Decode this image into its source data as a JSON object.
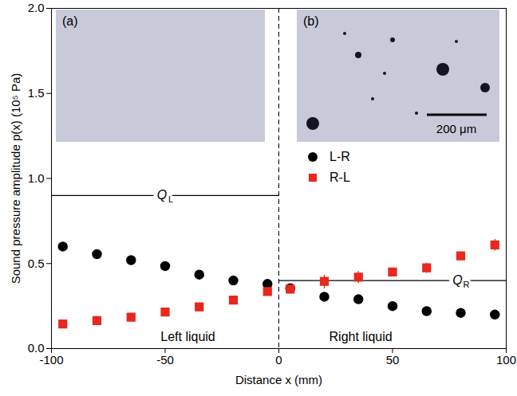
{
  "chart_data": {
    "type": "scatter",
    "x_label": "Distance x (mm)",
    "y_label": "Sound pressure amplitude p(x) (10⁵ Pa)",
    "xlim": [
      -100,
      100
    ],
    "xticks": [
      -100,
      -50,
      0,
      50,
      100
    ],
    "ylim": [
      0,
      2
    ],
    "yticks": [
      {
        "value": 0,
        "label": "0.0"
      },
      {
        "value": 0.5,
        "label": "0.5"
      },
      {
        "value": 1,
        "label": "1.0"
      },
      {
        "value": 1.5,
        "label": "1.5"
      },
      {
        "value": 2,
        "label": "2.0"
      }
    ],
    "grid": false,
    "legend": "right",
    "x": [
      -95,
      -80,
      -65,
      -50,
      -35,
      -20,
      -5,
      5,
      20,
      35,
      50,
      65,
      80,
      95
    ],
    "series": [
      {
        "name": "L-R",
        "color": "#000000",
        "marker": "circle",
        "values": [
          0.6,
          0.555,
          0.52,
          0.485,
          0.435,
          0.4,
          0.38,
          0.355,
          0.305,
          0.29,
          0.25,
          0.22,
          0.21,
          0.2
        ],
        "errors": [
          null,
          null,
          null,
          null,
          null,
          null,
          null,
          0.01,
          0.01,
          0.01,
          0.01,
          0.02,
          0.02,
          0.015
        ]
      },
      {
        "name": "R-L",
        "color": "#e8281e",
        "marker": "square",
        "values": [
          0.145,
          0.165,
          0.185,
          0.215,
          0.245,
          0.285,
          0.335,
          0.35,
          0.395,
          0.42,
          0.45,
          0.475,
          0.545,
          0.61
        ],
        "errors": [
          null,
          null,
          null,
          null,
          null,
          null,
          null,
          0.015,
          0.04,
          0.035,
          0.025,
          0.03,
          0.025,
          0.035
        ]
      }
    ],
    "reference_lines": [
      {
        "label": "Q",
        "subscript": "L",
        "y": 0.9,
        "x1": -100,
        "x2": 0,
        "label_x": -50
      },
      {
        "label": "Q",
        "subscript": "R",
        "y": 0.4,
        "x1": 0,
        "x2": 100,
        "label_x": 80
      }
    ],
    "divider": {
      "x": 0,
      "line_style": "dashed"
    },
    "annotations": [
      {
        "text": "Left liquid",
        "x": -40,
        "y": 0.07
      },
      {
        "text": "Right liquid",
        "x": 36,
        "y": 0.07
      }
    ],
    "insets": [
      {
        "label": "(a)"
      },
      {
        "label": "(b)",
        "scale_bar": "200 μm"
      }
    ]
  }
}
